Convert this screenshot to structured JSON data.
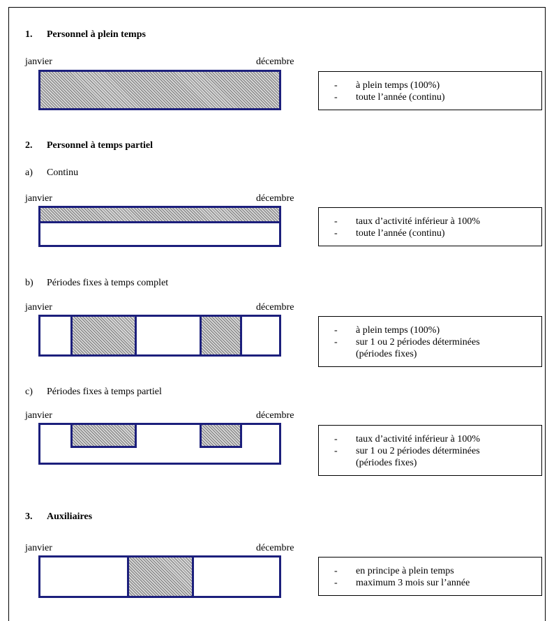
{
  "labels": {
    "start": "janvier",
    "end": "décembre"
  },
  "section1": {
    "num": "1.",
    "title": "Personnel à plein temps",
    "notes": [
      {
        "dash": "-",
        "text": "à plein temps (100%)"
      },
      {
        "dash": "-",
        "text": "toute l’année (continu)"
      }
    ]
  },
  "section2": {
    "num": "2.",
    "title": "Personnel à temps partiel",
    "a": {
      "num": "a)",
      "title": "Continu",
      "notes": [
        {
          "dash": "-",
          "text": "taux d’activité inférieur à 100%"
        },
        {
          "dash": "-",
          "text": "toute l’année (continu)"
        }
      ]
    },
    "b": {
      "num": "b)",
      "title": "Périodes fixes à temps complet",
      "notes": [
        {
          "dash": "-",
          "text": "à plein temps (100%)"
        },
        {
          "dash": "-",
          "text": "sur 1 ou 2 périodes déterminées"
        },
        {
          "dash": "",
          "text": "(périodes fixes)"
        }
      ]
    },
    "c": {
      "num": "c)",
      "title": "Périodes fixes à temps partiel",
      "notes": [
        {
          "dash": "-",
          "text": "taux d’activité inférieur à 100%"
        },
        {
          "dash": "-",
          "text": "sur 1 ou 2 périodes déterminées"
        },
        {
          "dash": "",
          "text": "(périodes fixes)"
        }
      ]
    }
  },
  "section3": {
    "num": "3.",
    "title": "Auxiliaires",
    "notes": [
      {
        "dash": "-",
        "text": "en principe à plein temps"
      },
      {
        "dash": "-",
        "text": "maximum 3 mois sur l’année"
      }
    ]
  }
}
